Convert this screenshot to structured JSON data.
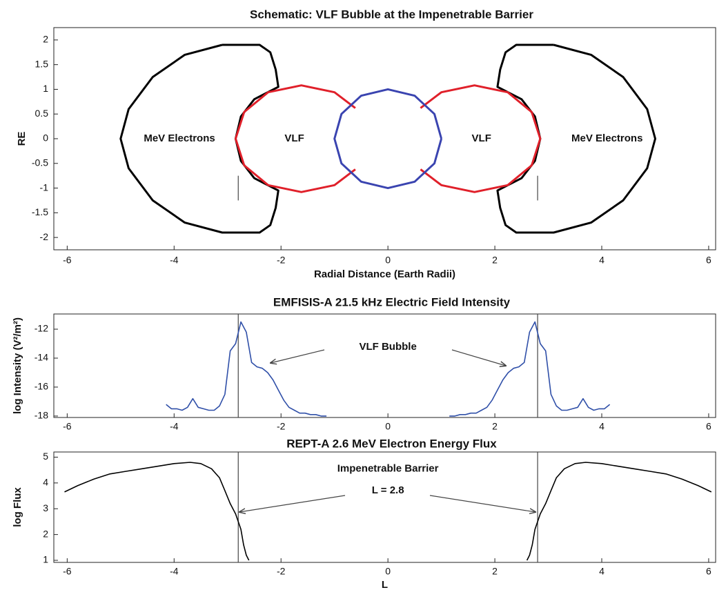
{
  "chart_data": [
    {
      "type": "line",
      "title": "Schematic: VLF Bubble at the Impenetrable Barrier",
      "xlabel": "Radial Distance (Earth Radii)",
      "ylabel": "RE",
      "xlim": [
        -6.25,
        6.13
      ],
      "ylim": [
        -2.25,
        2.25
      ],
      "xticks": [
        -6,
        -4,
        -2,
        0,
        2,
        4,
        6
      ],
      "yticks": [
        -2,
        -1.5,
        -1,
        -0.5,
        0,
        0.5,
        1,
        1.5,
        2
      ],
      "annotations": [
        "MeV Electrons",
        "VLF",
        "VLF",
        "MeV Electrons"
      ],
      "vlines": [
        -2.8,
        2.8
      ],
      "series": [
        {
          "color": "#000000",
          "x": [
            -3.1,
            -2.4,
            -2.2,
            -2.1,
            -2.05,
            -2.5,
            -2.75,
            -2.85,
            -2.75,
            -2.5,
            -2.05,
            -2.1,
            -2.2,
            -2.4,
            -3.1,
            -3.8,
            -4.4,
            -4.85,
            -5.0,
            -4.85,
            -4.4,
            -3.8,
            -3.1
          ],
          "values": [
            1.9,
            1.9,
            1.75,
            1.4,
            1.05,
            0.8,
            0.45,
            0,
            -0.45,
            -0.8,
            -1.05,
            -1.4,
            -1.75,
            -1.9,
            -1.9,
            -1.7,
            -1.25,
            -0.6,
            0,
            0.6,
            1.25,
            1.7,
            1.9
          ]
        },
        {
          "color": "#000000",
          "x": [
            3.1,
            2.4,
            2.2,
            2.1,
            2.05,
            2.5,
            2.75,
            2.85,
            2.75,
            2.5,
            2.05,
            2.1,
            2.2,
            2.4,
            3.1,
            3.8,
            4.4,
            4.85,
            5.0,
            4.85,
            4.4,
            3.8,
            3.1
          ],
          "values": [
            1.9,
            1.9,
            1.75,
            1.4,
            1.05,
            0.8,
            0.45,
            0,
            -0.45,
            -0.8,
            -1.05,
            -1.4,
            -1.75,
            -1.9,
            -1.9,
            -1.7,
            -1.25,
            -0.6,
            0,
            0.6,
            1.25,
            1.7,
            1.9
          ]
        },
        {
          "color": "#e0202a",
          "x": [
            -0.61,
            -1.0,
            -1.62,
            -2.24,
            -2.69,
            -2.85,
            -2.69,
            -2.24,
            -1.62,
            -1.0,
            -0.61
          ],
          "values": [
            0.62,
            0.94,
            1.08,
            0.94,
            0.54,
            0,
            -0.54,
            -0.94,
            -1.08,
            -0.94,
            -0.62
          ]
        },
        {
          "color": "#e0202a",
          "x": [
            0.61,
            1.0,
            1.62,
            2.24,
            2.69,
            2.85,
            2.69,
            2.24,
            1.62,
            1.0,
            0.61
          ],
          "values": [
            0.62,
            0.94,
            1.08,
            0.94,
            0.54,
            0,
            -0.54,
            -0.94,
            -1.08,
            -0.94,
            -0.62
          ]
        },
        {
          "color": "#3a44b0",
          "x": [
            1.0,
            0.87,
            0.5,
            0,
            -0.5,
            -0.87,
            -1.0,
            -0.87,
            -0.5,
            0,
            0.5,
            0.87,
            1.0
          ],
          "values": [
            0,
            0.5,
            0.87,
            1.0,
            0.87,
            0.5,
            0,
            -0.5,
            -0.87,
            -1.0,
            -0.87,
            -0.5,
            0
          ]
        }
      ]
    },
    {
      "type": "line",
      "title": "EMFISIS-A 21.5 kHz Electric Field Intensity",
      "ylabel": "log Intensity (V²/m²)",
      "xlim": [
        -6.25,
        6.13
      ],
      "ylim": [
        -18.1,
        -10.95
      ],
      "xticks": [
        -6,
        -4,
        -2,
        0,
        2,
        4,
        6
      ],
      "yticks": [
        -18,
        -16,
        -14,
        -12
      ],
      "annotations": [
        "VLF Bubble"
      ],
      "vlines": [
        -2.8,
        2.8
      ],
      "series": [
        {
          "color": "#2f4fa8",
          "x": [
            -4.15,
            -4.05,
            -3.95,
            -3.85,
            -3.75,
            -3.65,
            -3.55,
            -3.45,
            -3.35,
            -3.25,
            -3.15,
            -3.05,
            -2.95,
            -2.85,
            -2.75,
            -2.65,
            -2.55,
            -2.45,
            -2.35,
            -2.25,
            -2.15,
            -2.05,
            -1.95,
            -1.85,
            -1.75,
            -1.65,
            -1.55,
            -1.45,
            -1.35,
            -1.25,
            -1.15,
            0,
            1.15,
            1.25,
            1.35,
            1.45,
            1.55,
            1.65,
            1.75,
            1.85,
            1.95,
            2.05,
            2.15,
            2.25,
            2.35,
            2.45,
            2.55,
            2.65,
            2.75,
            2.85,
            2.95,
            3.05,
            3.15,
            3.25,
            3.35,
            3.45,
            3.55,
            3.65,
            3.75,
            3.85,
            3.95,
            4.05,
            4.15
          ],
          "values": [
            -17.2,
            -17.5,
            -17.5,
            -17.6,
            -17.4,
            -16.8,
            -17.4,
            -17.5,
            -17.6,
            -17.6,
            -17.3,
            -16.5,
            -13.5,
            -13.0,
            -11.5,
            -12.2,
            -14.3,
            -14.6,
            -14.7,
            -15.0,
            -15.5,
            -16.2,
            -16.9,
            -17.4,
            -17.6,
            -17.8,
            -17.8,
            -17.9,
            -17.9,
            -18.0,
            -18.0,
            null,
            -18.0,
            -18.0,
            -17.9,
            -17.9,
            -17.8,
            -17.8,
            -17.6,
            -17.4,
            -16.9,
            -16.2,
            -15.5,
            -15.0,
            -14.7,
            -14.6,
            -14.3,
            -12.2,
            -11.5,
            -13.0,
            -13.5,
            -16.5,
            -17.3,
            -17.6,
            -17.6,
            -17.5,
            -17.4,
            -16.8,
            -17.4,
            -17.6,
            -17.5,
            -17.5,
            -17.2
          ]
        }
      ]
    },
    {
      "type": "line",
      "title": "REPT-A 2.6 MeV Electron Energy Flux",
      "xlabel": "L",
      "ylabel": "log Flux",
      "xlim": [
        -6.25,
        6.13
      ],
      "ylim": [
        0.92,
        5.2
      ],
      "xticks": [
        -6,
        -4,
        -2,
        0,
        2,
        4,
        6
      ],
      "yticks": [
        1,
        2,
        3,
        4,
        5
      ],
      "annotations": [
        "Impenetrable Barrier",
        "L = 2.8"
      ],
      "vlines": [
        -2.8,
        2.8
      ],
      "series": [
        {
          "color": "#000000",
          "x": [
            -6.05,
            -5.8,
            -5.5,
            -5.2,
            -4.9,
            -4.6,
            -4.3,
            -4.0,
            -3.7,
            -3.5,
            -3.3,
            -3.15,
            -3.05,
            -2.95,
            -2.85,
            -2.75,
            -2.7,
            -2.65,
            -2.6,
            0,
            2.6,
            2.65,
            2.7,
            2.75,
            2.85,
            2.95,
            3.05,
            3.15,
            3.3,
            3.5,
            3.7,
            4.0,
            4.3,
            4.6,
            4.9,
            5.2,
            5.5,
            5.8,
            6.05
          ],
          "values": [
            3.65,
            3.9,
            4.15,
            4.35,
            4.45,
            4.55,
            4.65,
            4.75,
            4.8,
            4.75,
            4.55,
            4.2,
            3.7,
            3.2,
            2.8,
            2.2,
            1.6,
            1.2,
            1.0,
            null,
            1.0,
            1.2,
            1.6,
            2.2,
            2.8,
            3.2,
            3.7,
            4.2,
            4.55,
            4.75,
            4.8,
            4.75,
            4.65,
            4.55,
            4.45,
            4.35,
            4.15,
            3.9,
            3.65
          ]
        }
      ]
    }
  ]
}
